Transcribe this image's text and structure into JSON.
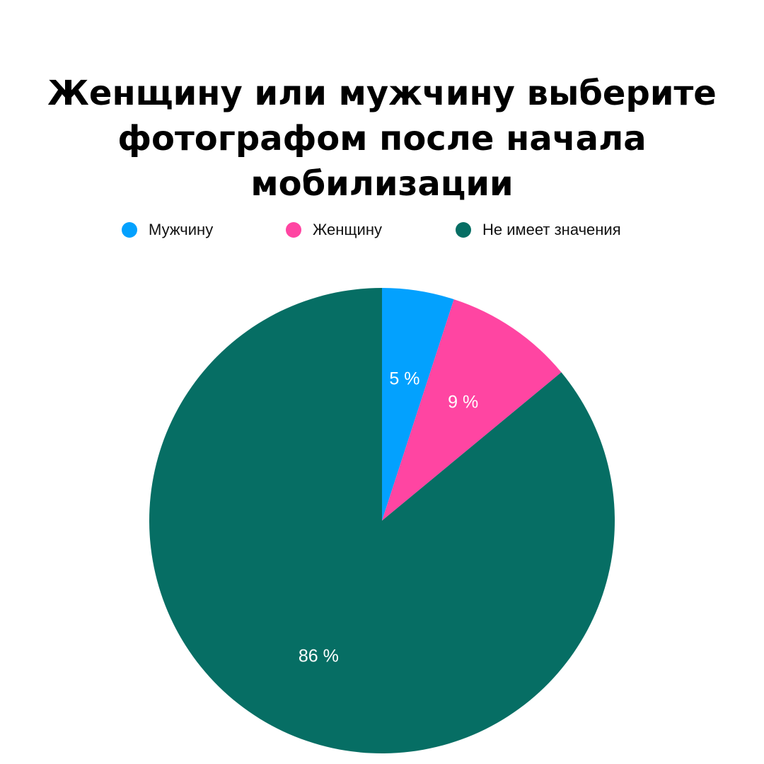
{
  "chart_data": {
    "type": "pie",
    "title": "Женщину или мужчину выберите фотографом после начала мобилизации",
    "title_lines": [
      "Женщину или мужчину выберите",
      "фотографом после начала мобилизации"
    ],
    "legend_position": "top",
    "slices": [
      {
        "label": "Мужчину",
        "value": 5,
        "display": "5 %",
        "color": "#03A1FE"
      },
      {
        "label": "Женщину",
        "value": 9,
        "display": "9 %",
        "color": "#FF45A2"
      },
      {
        "label": "Не имеет значения",
        "value": 86,
        "display": "86 %",
        "color": "#066E64"
      }
    ]
  }
}
